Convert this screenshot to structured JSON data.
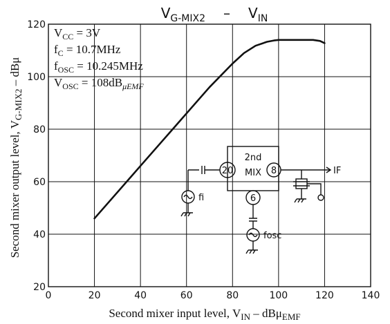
{
  "chart_data": {
    "type": "line",
    "title_parts": {
      "main": "V",
      "sub": "G-MIX2",
      "sep": "–",
      "main2": "V",
      "sub2": "IN"
    },
    "xlabel": {
      "text": "Second mixer input level, V",
      "sub": "IN",
      "unit": " – dBμ",
      "unit_sub": "EMF"
    },
    "ylabel": {
      "text": "Second mixer output level, V",
      "sub": "G-MIX2",
      "unit": " – dBμ"
    },
    "xlim": [
      0,
      140
    ],
    "ylim": [
      20,
      120
    ],
    "xticks": [
      0,
      20,
      40,
      60,
      80,
      100,
      120,
      140
    ],
    "yticks": [
      20,
      40,
      60,
      80,
      100,
      120
    ],
    "grid": true,
    "series": [
      {
        "x": [
          20,
          30,
          40,
          50,
          60,
          70,
          80,
          85,
          90,
          95,
          98,
          100,
          105,
          110,
          115,
          118,
          120
        ],
        "y": [
          46,
          56,
          66,
          76,
          86,
          96,
          105,
          109,
          111.8,
          113.3,
          113.8,
          114,
          114,
          114,
          114,
          113.6,
          112.8
        ]
      }
    ],
    "conditions": [
      {
        "label": "V",
        "sub": "CC",
        "value": " = 3V"
      },
      {
        "label": "f",
        "sub": "C",
        "value": " = 10.7MHz"
      },
      {
        "label": "f",
        "sub": "OSC",
        "value": " = 10.245MHz"
      },
      {
        "label": "V",
        "sub": "OSC",
        "value": " = 108dB",
        "value_sub": "μEMF"
      }
    ]
  },
  "schematic": {
    "block_label_top": "2nd",
    "block_label_bottom": "MIX",
    "pin_input": "20",
    "pin_output": "8",
    "pin_osc": "6",
    "label_fi": "fi",
    "label_fosc": "fosc",
    "label_if": "IF"
  }
}
